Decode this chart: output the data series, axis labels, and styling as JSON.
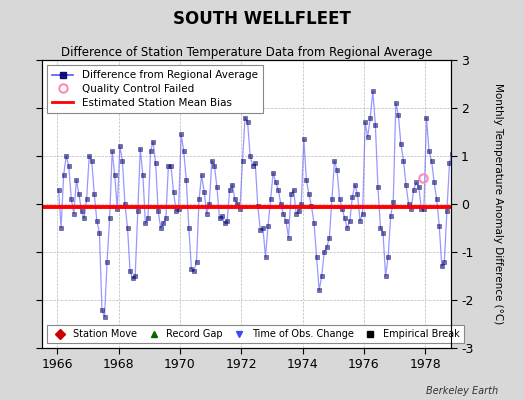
{
  "title": "SOUTH WELLFLEET",
  "subtitle": "Difference of Station Temperature Data from Regional Average",
  "ylabel": "Monthly Temperature Anomaly Difference (°C)",
  "xlabel_years": [
    1966,
    1968,
    1970,
    1972,
    1974,
    1976,
    1978
  ],
  "xlim": [
    1965.5,
    1978.83
  ],
  "ylim": [
    -3,
    3
  ],
  "yticks": [
    -3,
    -2,
    -1,
    0,
    1,
    2,
    3
  ],
  "bias_value": -0.07,
  "bias_color": "#ff0000",
  "line_color": "#4444ff",
  "line_alpha": 0.55,
  "marker_color": "#000066",
  "bg_color": "#d8d8d8",
  "plot_bg_color": "#ffffff",
  "qc_fail_x": 1977.917,
  "qc_fail_y": 0.55,
  "berkeley_earth_text": "Berkeley Earth",
  "data_x": [
    1966.042,
    1966.125,
    1966.208,
    1966.292,
    1966.375,
    1966.458,
    1966.542,
    1966.625,
    1966.708,
    1966.792,
    1966.875,
    1966.958,
    1967.042,
    1967.125,
    1967.208,
    1967.292,
    1967.375,
    1967.458,
    1967.542,
    1967.625,
    1967.708,
    1967.792,
    1967.875,
    1967.958,
    1968.042,
    1968.125,
    1968.208,
    1968.292,
    1968.375,
    1968.458,
    1968.542,
    1968.625,
    1968.708,
    1968.792,
    1968.875,
    1968.958,
    1969.042,
    1969.125,
    1969.208,
    1969.292,
    1969.375,
    1969.458,
    1969.542,
    1969.625,
    1969.708,
    1969.792,
    1969.875,
    1969.958,
    1970.042,
    1970.125,
    1970.208,
    1970.292,
    1970.375,
    1970.458,
    1970.542,
    1970.625,
    1970.708,
    1970.792,
    1970.875,
    1970.958,
    1971.042,
    1971.125,
    1971.208,
    1971.292,
    1971.375,
    1971.458,
    1971.542,
    1971.625,
    1971.708,
    1971.792,
    1971.875,
    1971.958,
    1972.042,
    1972.125,
    1972.208,
    1972.292,
    1972.375,
    1972.458,
    1972.542,
    1972.625,
    1972.708,
    1972.792,
    1972.875,
    1972.958,
    1973.042,
    1973.125,
    1973.208,
    1973.292,
    1973.375,
    1973.458,
    1973.542,
    1973.625,
    1973.708,
    1973.792,
    1973.875,
    1973.958,
    1974.042,
    1974.125,
    1974.208,
    1974.292,
    1974.375,
    1974.458,
    1974.542,
    1974.625,
    1974.708,
    1974.792,
    1974.875,
    1974.958,
    1975.042,
    1975.125,
    1975.208,
    1975.292,
    1975.375,
    1975.458,
    1975.542,
    1975.625,
    1975.708,
    1975.792,
    1975.875,
    1975.958,
    1976.042,
    1976.125,
    1976.208,
    1976.292,
    1976.375,
    1976.458,
    1976.542,
    1976.625,
    1976.708,
    1976.792,
    1976.875,
    1976.958,
    1977.042,
    1977.125,
    1977.208,
    1977.292,
    1977.375,
    1977.458,
    1977.542,
    1977.625,
    1977.708,
    1977.792,
    1977.875,
    1977.958,
    1978.042,
    1978.125,
    1978.208,
    1978.292,
    1978.375,
    1978.458,
    1978.542,
    1978.625,
    1978.708,
    1978.792,
    1978.875,
    1978.958
  ],
  "data_y": [
    0.3,
    -0.5,
    0.6,
    1.0,
    0.8,
    0.1,
    -0.2,
    0.5,
    0.2,
    -0.15,
    -0.3,
    0.1,
    1.0,
    0.9,
    0.2,
    -0.35,
    -0.6,
    -2.2,
    -2.35,
    -1.2,
    -0.3,
    1.1,
    0.6,
    -0.1,
    1.2,
    0.9,
    0.0,
    -0.5,
    -1.4,
    -1.55,
    -1.5,
    -0.15,
    1.15,
    0.6,
    -0.4,
    -0.3,
    1.1,
    1.3,
    0.85,
    -0.15,
    -0.5,
    -0.4,
    -0.3,
    0.8,
    0.8,
    0.25,
    -0.15,
    -0.1,
    1.45,
    1.1,
    0.5,
    -0.5,
    -1.35,
    -1.4,
    -1.2,
    0.1,
    0.6,
    0.25,
    -0.2,
    0.0,
    0.9,
    0.8,
    0.35,
    -0.3,
    -0.25,
    -0.4,
    -0.35,
    0.3,
    0.4,
    0.1,
    0.0,
    -0.1,
    0.9,
    1.8,
    1.7,
    1.0,
    0.8,
    0.85,
    -0.05,
    -0.55,
    -0.5,
    -1.1,
    -0.45,
    0.1,
    0.65,
    0.45,
    0.3,
    0.0,
    -0.2,
    -0.35,
    -0.7,
    0.2,
    0.3,
    -0.2,
    -0.15,
    0.0,
    1.35,
    0.5,
    0.2,
    -0.05,
    -0.4,
    -1.1,
    -1.8,
    -1.5,
    -1.0,
    -0.9,
    -0.7,
    0.1,
    0.9,
    0.7,
    0.1,
    -0.1,
    -0.3,
    -0.5,
    -0.35,
    0.15,
    0.4,
    0.2,
    -0.35,
    -0.2,
    1.7,
    1.4,
    1.8,
    2.35,
    1.65,
    0.35,
    -0.5,
    -0.6,
    -1.5,
    -1.1,
    -0.25,
    0.05,
    2.1,
    1.85,
    1.25,
    0.9,
    0.4,
    0.0,
    -0.1,
    0.3,
    0.45,
    0.35,
    -0.1,
    -0.1,
    1.8,
    1.1,
    0.9,
    0.45,
    0.1,
    -0.45,
    -1.3,
    -1.2,
    -0.15,
    0.85,
    1.05,
    0.55
  ]
}
